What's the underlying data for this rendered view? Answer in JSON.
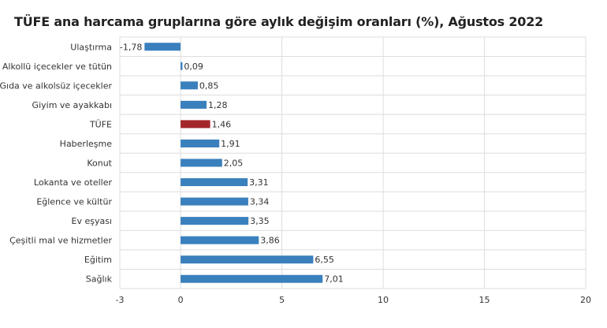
{
  "chart_data": {
    "type": "bar",
    "orientation": "horizontal",
    "title": "TÜFE ana harcama gruplarına göre aylık değişim oranları (%), Ağustos 2022",
    "xlabel": "",
    "ylabel": "",
    "xlim": [
      -3,
      20
    ],
    "x_ticks": [
      -3,
      0,
      5,
      10,
      15,
      20
    ],
    "grid": true,
    "colors": {
      "default": "#3a80bd",
      "highlight": "#a3262b"
    },
    "bars": [
      {
        "category": "Ulaştırma",
        "value": -1.78,
        "label": "-1,78",
        "highlight": false
      },
      {
        "category": "Alkollü içecekler ve tütün",
        "value": 0.09,
        "label": "0,09",
        "highlight": false
      },
      {
        "category": "Gıda ve alkolsüz içecekler",
        "value": 0.85,
        "label": "0,85",
        "highlight": false
      },
      {
        "category": "Giyim ve ayakkabı",
        "value": 1.28,
        "label": "1,28",
        "highlight": false
      },
      {
        "category": "TÜFE",
        "value": 1.46,
        "label": "1,46",
        "highlight": true
      },
      {
        "category": "Haberleşme",
        "value": 1.91,
        "label": "1,91",
        "highlight": false
      },
      {
        "category": "Konut",
        "value": 2.05,
        "label": "2,05",
        "highlight": false
      },
      {
        "category": "Lokanta ve oteller",
        "value": 3.31,
        "label": "3,31",
        "highlight": false
      },
      {
        "category": "Eğlence ve kültür",
        "value": 3.34,
        "label": "3,34",
        "highlight": false
      },
      {
        "category": "Ev eşyası",
        "value": 3.35,
        "label": "3,35",
        "highlight": false
      },
      {
        "category": "Çeşitli mal ve hizmetler",
        "value": 3.86,
        "label": "3,86",
        "highlight": false
      },
      {
        "category": "Eğitim",
        "value": 6.55,
        "label": "6,55",
        "highlight": false
      },
      {
        "category": "Sağlık",
        "value": 7.01,
        "label": "7,01",
        "highlight": false
      }
    ]
  }
}
